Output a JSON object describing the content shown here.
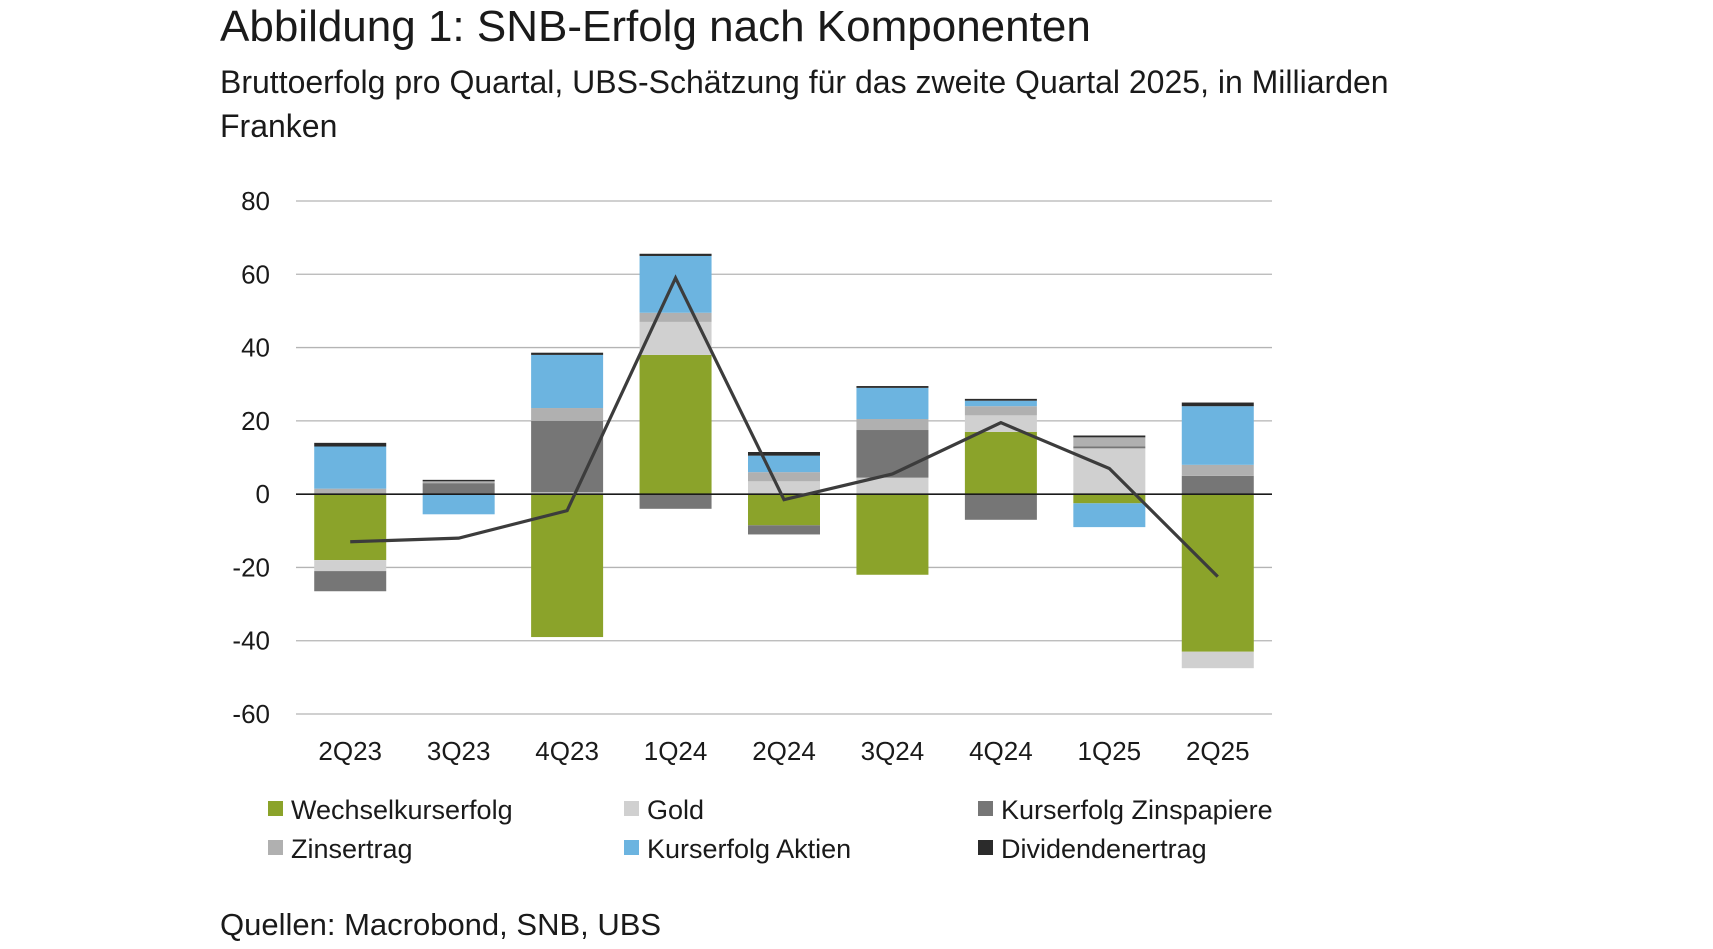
{
  "header": {
    "title": "Abbildung 1: SNB-Erfolg nach Komponenten",
    "subtitle": "Bruttoerfolg pro Quartal, UBS-Schätzung für das zweite Quartal 2025, in Milliarden Franken"
  },
  "footer": {
    "source": "Quellen: Macrobond, SNB, UBS"
  },
  "chart_data": {
    "type": "bar",
    "stacked": true,
    "categories": [
      "2Q23",
      "3Q23",
      "4Q23",
      "1Q24",
      "2Q24",
      "3Q24",
      "4Q24",
      "1Q25",
      "2Q25"
    ],
    "ylim": [
      -60,
      80
    ],
    "yticks": [
      80,
      60,
      40,
      20,
      0,
      -20,
      -40,
      -60
    ],
    "grid": true,
    "legend_position": "bottom",
    "series": [
      {
        "name": "Wechselkurserfolg",
        "color": "#8ba32a",
        "values": [
          -18,
          0,
          -39,
          38,
          -8.5,
          -22,
          17,
          -2.5,
          -43
        ]
      },
      {
        "name": "Gold",
        "color": "#d0d0d0",
        "values": [
          -3,
          0,
          0.5,
          9,
          3.5,
          4.5,
          4.5,
          12.5,
          -4.5
        ]
      },
      {
        "name": "Kurserfolg Zinspapiere",
        "color": "#767676",
        "values": [
          -5.5,
          3,
          19.5,
          -4,
          -2.5,
          13,
          -7,
          0.5,
          5
        ]
      },
      {
        "name": "Zinsertrag",
        "color": "#b0b0b0",
        "values": [
          1.5,
          0.5,
          3.5,
          2.5,
          2.5,
          3,
          2.5,
          2.5,
          3
        ]
      },
      {
        "name": "Kurserfolg Aktien",
        "color": "#6cb4e0",
        "values": [
          11.5,
          -5.5,
          14.5,
          15.5,
          4.5,
          8.5,
          1.5,
          -6.5,
          16
        ]
      },
      {
        "name": "Dividendenertrag",
        "color": "#2b2b2b",
        "values": [
          1,
          0.4,
          0.6,
          0.6,
          1,
          0.5,
          0.5,
          0.5,
          1
        ]
      }
    ],
    "line": {
      "color": "#3c3c3c",
      "values": [
        -13,
        -12,
        -4.5,
        59,
        -1.5,
        5.5,
        19.5,
        7,
        -22.5
      ]
    }
  }
}
